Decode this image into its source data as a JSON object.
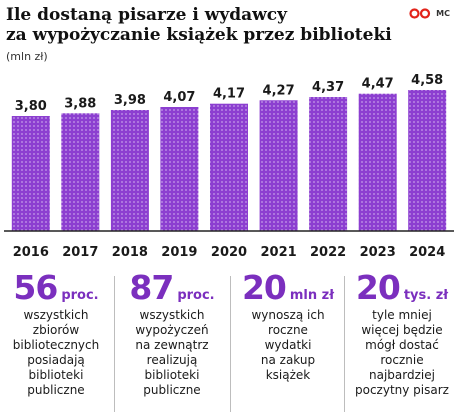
{
  "header": {
    "title_line1": "Ile dostaną pisarze i wydawcy",
    "title_line2": "za wypożyczanie książek przez biblioteki",
    "unit": "(mln zł)",
    "logo_text": "MC"
  },
  "colors": {
    "bar": "#8c3fd0",
    "bar_dot": "#ffffff",
    "accent": "#7b2fbe",
    "logo_red": "#e2231a"
  },
  "chart_data": {
    "type": "bar",
    "categories": [
      "2016",
      "2017",
      "2018",
      "2019",
      "2020",
      "2021",
      "2022",
      "2023",
      "2024"
    ],
    "values": [
      3.8,
      3.88,
      3.98,
      4.07,
      4.17,
      4.27,
      4.37,
      4.47,
      4.58
    ],
    "value_labels": [
      "3,80",
      "3,88",
      "3,98",
      "4,07",
      "4,17",
      "4,27",
      "4,37",
      "4,47",
      "4,58"
    ],
    "title": "Ile dostaną pisarze i wydawcy za wypożyczanie książek przez biblioteki",
    "ylabel": "mln zł",
    "grid": false,
    "legend": "none"
  },
  "stats": [
    {
      "num": "56",
      "suffix": "proc.",
      "desc": [
        "wszystkich",
        "zbiorów",
        "bibliotecznych",
        "posiadają",
        "biblioteki",
        "publiczne"
      ]
    },
    {
      "num": "87",
      "suffix": "proc.",
      "desc": [
        "wszystkich",
        "wypożyczeń",
        "na zewnątrz",
        "realizują",
        "biblioteki",
        "publiczne"
      ]
    },
    {
      "num": "20",
      "suffix": "mln zł",
      "desc": [
        "wynoszą ich",
        "roczne",
        "wydatki",
        "na zakup",
        "książek"
      ]
    },
    {
      "num": "20",
      "suffix": "tys. zł",
      "desc": [
        "tyle mniej",
        "więcej będzie",
        "mógł dostać",
        "rocznie",
        "najbardziej",
        "poczytny pisarz"
      ]
    }
  ]
}
